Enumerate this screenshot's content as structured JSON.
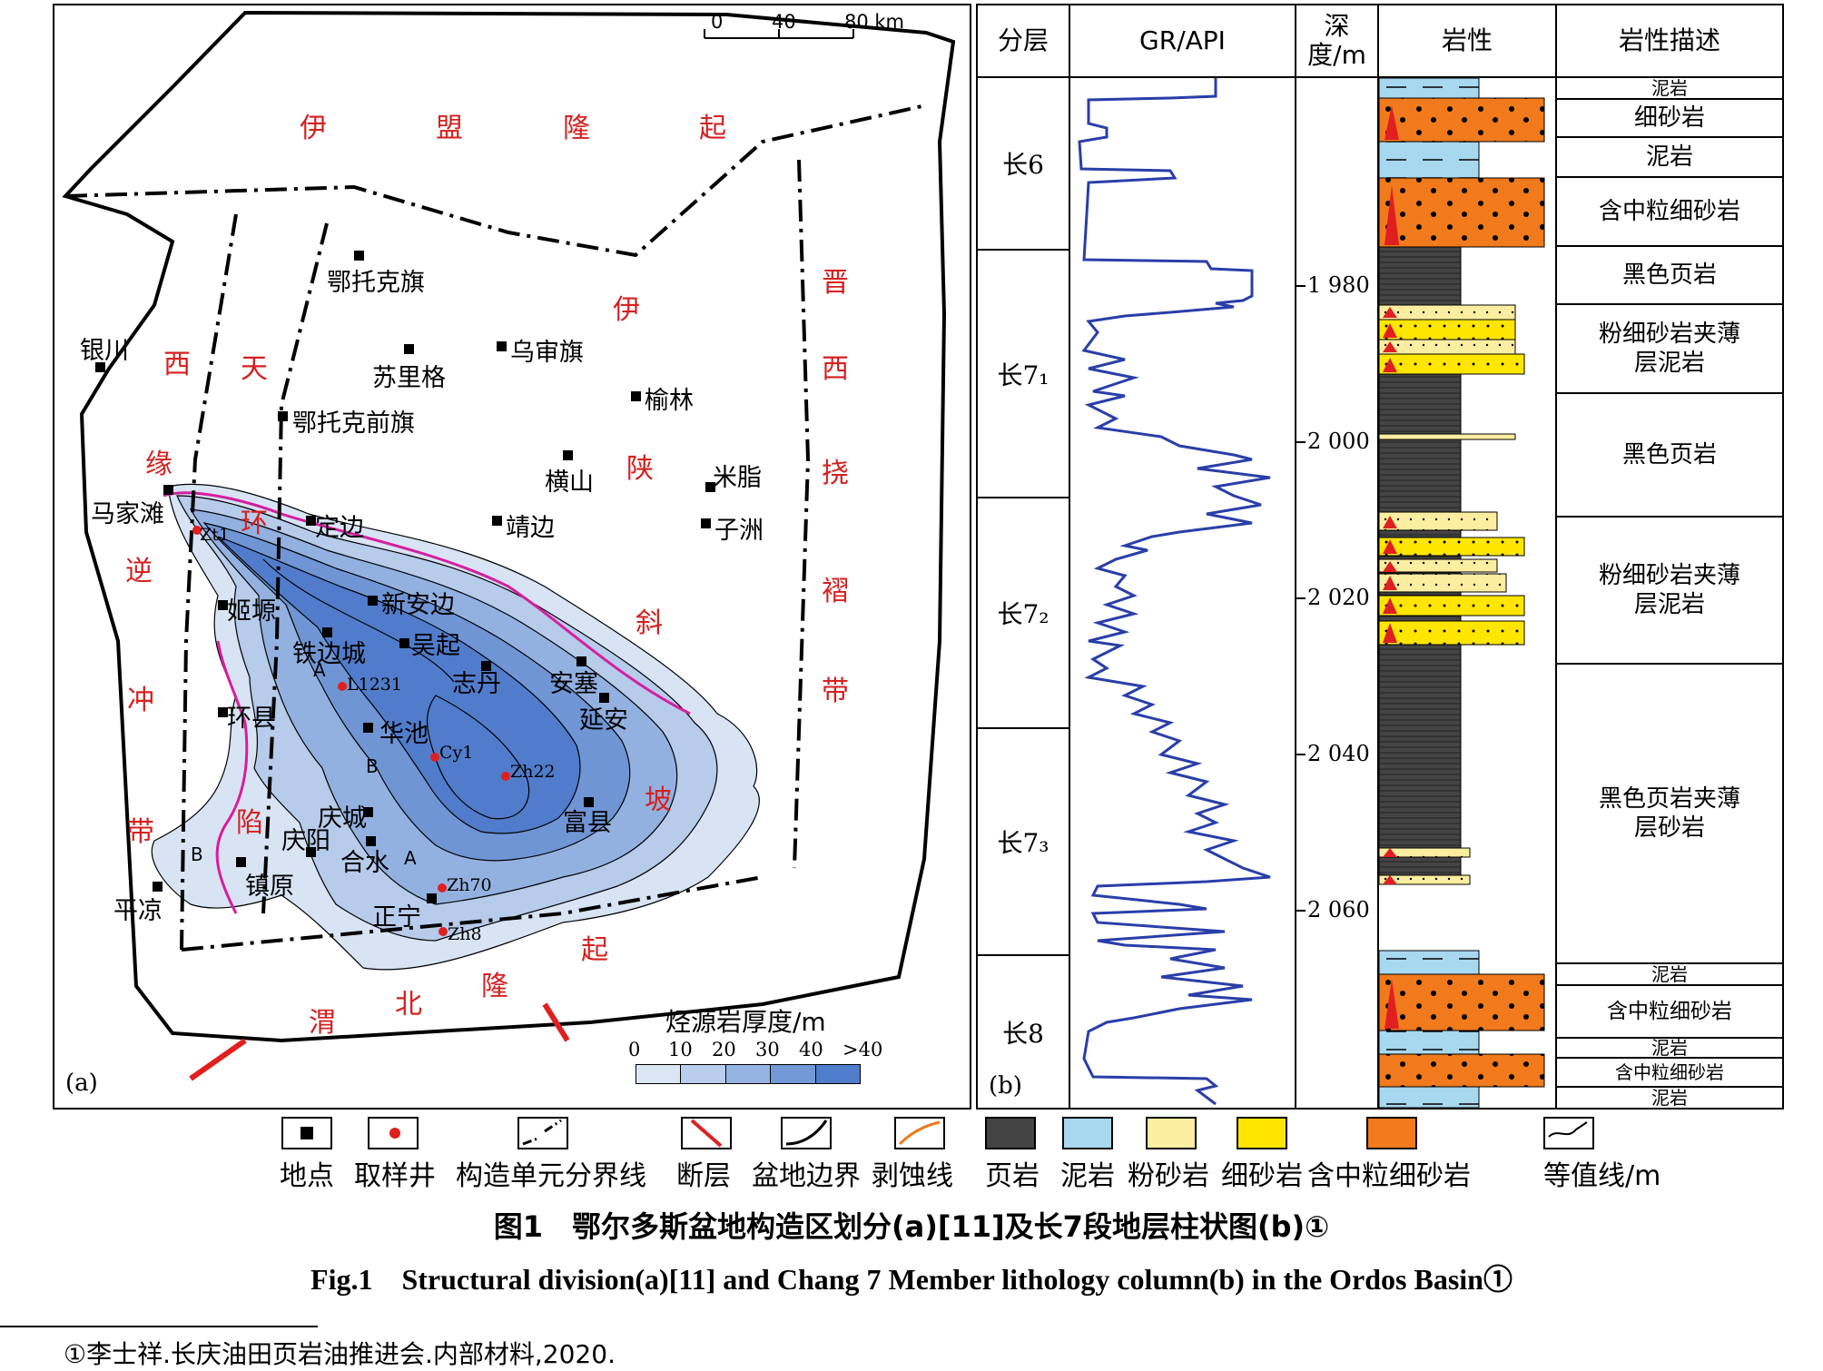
{
  "map": {
    "scale_ticks": [
      "0",
      "40",
      "80 km"
    ],
    "panel_label": "(a)",
    "regions": [
      "伊",
      "盟",
      "隆",
      "起",
      "晋",
      "西",
      "挠",
      "褶",
      "带",
      "伊",
      "陕",
      "斜",
      "坡",
      "西",
      "缘",
      "逆",
      "冲",
      "带",
      "天",
      "环",
      "陷",
      "渭",
      "北",
      "隆",
      "起"
    ],
    "places": [
      "银川",
      "鄂托克旗",
      "乌审旗",
      "苏里格",
      "榆林",
      "鄂托克前旗",
      "横山",
      "米脂",
      "马家滩",
      "定边",
      "靖边",
      "子洲",
      "姬塬",
      "新安边",
      "铁边城",
      "吴起",
      "志丹",
      "安塞",
      "环县",
      "华池",
      "延安",
      "庆城",
      "合水",
      "庆阳",
      "富县",
      "镇原",
      "正宁",
      "平凉"
    ],
    "wells": [
      "Zt1",
      "L1231",
      "Cy1",
      "Zh22",
      "Zh70",
      "Zh8"
    ],
    "markers": [
      "A",
      "A",
      "B",
      "B"
    ],
    "thickness_legend": {
      "title": "烃源岩厚度/m",
      "ticks": [
        "0",
        "10",
        "20",
        "30",
        "40",
        ">40"
      ],
      "colors": [
        "#dbe6f5",
        "#b9cdec",
        "#96b4e2",
        "#7399d6",
        "#4f7ccb"
      ]
    }
  },
  "column": {
    "panel_label": "(b)",
    "headers": [
      "分层",
      "GR/API",
      "深度/m",
      "岩性",
      "岩性描述"
    ],
    "layers": [
      "长6",
      "长7₁",
      "长7₂",
      "长7₃",
      "长8"
    ],
    "depth_ticks": [
      "1 980",
      "2 000",
      "2 020",
      "2 040",
      "2 060"
    ],
    "descriptions": [
      "泥岩",
      "细砂岩",
      "泥岩",
      "含中粒细砂岩",
      "黑色页岩",
      "粉细砂岩夹薄层泥岩",
      "黑色页岩",
      "粉细砂岩夹薄层泥岩",
      "黑色页岩夹薄层砂岩",
      "泥岩",
      "含中粒细砂岩",
      "泥岩",
      "含中粒细砂岩",
      "泥岩"
    ]
  },
  "legend": [
    "地点",
    "取样井",
    "构造单元分界线",
    "断层",
    "盆地边界",
    "剥蚀线",
    "页岩",
    "泥岩",
    "粉砂岩",
    "细砂岩",
    "含中粒细砂岩",
    "等值线/m"
  ],
  "caption_cn": "图1　鄂尔多斯盆地构造区划分(a)[11]及长7段地层柱状图(b)①",
  "caption_en": "Fig.1　Structural division(a)[11] and Chang 7 Member lithology column(b) in the Ordos Basin①",
  "footnote": "①李士祥.长庆油田页岩油推进会.内部材料,2020."
}
